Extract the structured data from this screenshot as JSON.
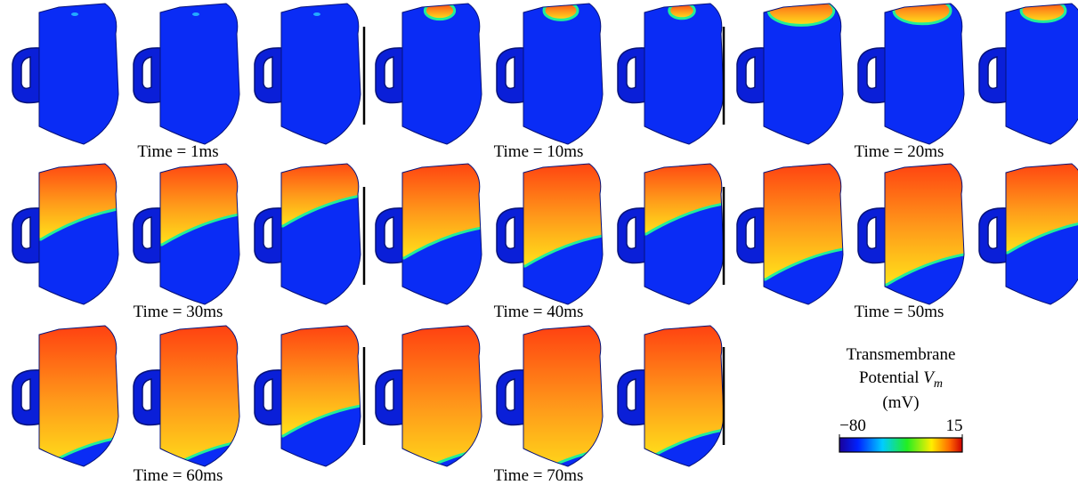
{
  "panels": {
    "time_labels": [
      "Time = 1ms",
      "Time = 10ms",
      "Time = 20ms",
      "Time = 30ms",
      "Time = 40ms",
      "Time = 50ms",
      "Time = 60ms",
      "Time = 70ms"
    ]
  },
  "colorbar": {
    "title_line1": "Transmembrane",
    "title_line2": {
      "text": "Potential",
      "symbol": "V",
      "subscript": "m"
    },
    "title_line3": "(mV)",
    "min_label": "−80",
    "max_label": "15"
  }
}
